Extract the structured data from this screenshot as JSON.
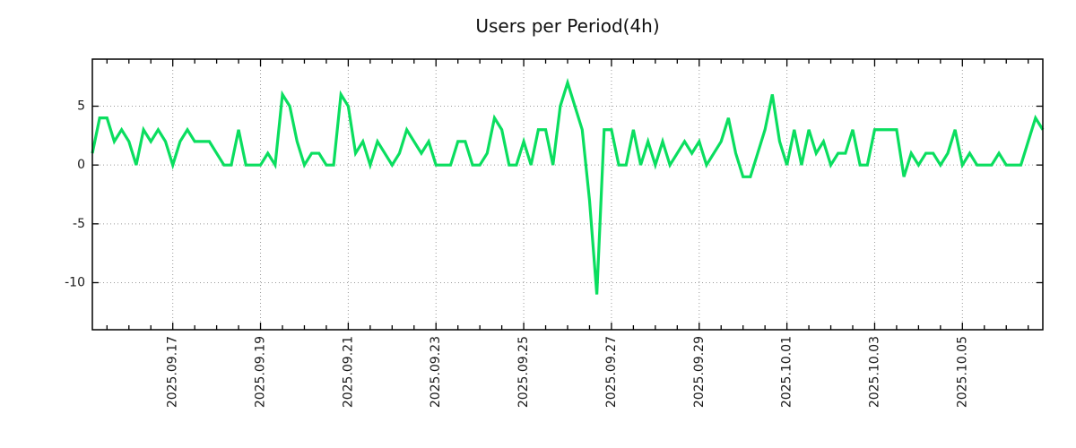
{
  "chart_data": {
    "type": "line",
    "title": "Users per Period(4h)",
    "series_name": "users",
    "period": "4h",
    "line_color": "#0ade5f",
    "grid_color": "#9a9a9a",
    "frame_color": "#000000",
    "background_color": "#ffffff",
    "grid_on": true,
    "legend_position": "none",
    "ylim": [
      -14,
      9
    ],
    "y_ticks": [
      5,
      0,
      -5,
      -10
    ],
    "x_tick_labels": [
      "2025.09.17",
      "2025.09.19",
      "2025.09.21",
      "2025.09.23",
      "2025.09.25",
      "2025.09.27",
      "2025.09.29",
      "2025.10.01",
      "2025.10.03",
      "2025.10.05"
    ],
    "first_label_point_index": 11,
    "points_per_label": 12,
    "points_per_minor_tick": 3,
    "values": [
      1,
      4,
      4,
      2,
      3,
      2,
      0,
      3,
      2,
      3,
      2,
      0,
      2,
      3,
      2,
      2,
      2,
      1,
      0,
      0,
      3,
      0,
      0,
      0,
      1,
      0,
      6,
      5,
      2,
      0,
      1,
      1,
      0,
      0,
      6,
      5,
      1,
      2,
      0,
      2,
      1,
      0,
      1,
      3,
      2,
      1,
      2,
      0,
      0,
      0,
      2,
      2,
      0,
      0,
      1,
      4,
      3,
      0,
      0,
      2,
      0,
      3,
      3,
      0,
      5,
      7,
      5,
      3,
      -3,
      -11,
      3,
      3,
      0,
      0,
      3,
      0,
      2,
      0,
      2,
      0,
      1,
      2,
      1,
      2,
      0,
      1,
      2,
      4,
      1,
      -1,
      -1,
      1,
      3,
      6,
      2,
      0,
      3,
      0,
      3,
      1,
      2,
      0,
      1,
      1,
      3,
      0,
      0,
      3,
      3,
      3,
      3,
      -1,
      1,
      0,
      1,
      1,
      0,
      1,
      3,
      0,
      1,
      0,
      0,
      0,
      1,
      0,
      0,
      0,
      2,
      4,
      3
    ]
  }
}
